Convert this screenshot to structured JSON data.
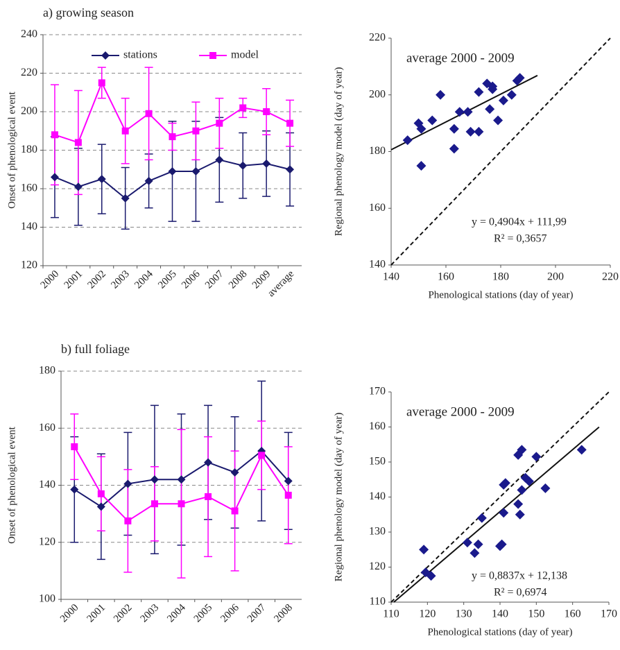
{
  "chart_data": [
    {
      "type": "line",
      "title": "a) growing season",
      "y_label": "Onset of phenological event",
      "categories": [
        "2000",
        "2001",
        "2002",
        "2003",
        "2004",
        "2005",
        "2006",
        "2007",
        "2008",
        "2009",
        "average"
      ],
      "series": [
        {
          "name": "stations",
          "color": "#1a1a6e",
          "marker": "diamond",
          "values": [
            166,
            161,
            165,
            155,
            164,
            169,
            169,
            175,
            172,
            173,
            170
          ],
          "errors": [
            21,
            20,
            18,
            16,
            14,
            26,
            26,
            22,
            17,
            17,
            19
          ]
        },
        {
          "name": "model",
          "color": "#ff00ff",
          "marker": "square",
          "values": [
            188,
            184,
            215,
            190,
            199,
            187,
            190,
            194,
            202,
            200,
            194
          ],
          "errors": [
            26,
            27,
            8,
            17,
            24,
            7,
            15,
            13,
            5,
            12,
            12
          ]
        }
      ],
      "ylim": [
        120,
        240
      ],
      "yticks": [
        120,
        140,
        160,
        180,
        200,
        220,
        240
      ],
      "grid": true,
      "legend": "top"
    },
    {
      "type": "scatter",
      "x_label": "Phenological stations (day of year)",
      "y_label": "Regional phenology model (day of year)",
      "annotations": [
        "average 2000 - 2009",
        "y = 0,4904x + 111,99",
        "R² = 0,3657"
      ],
      "x": [
        146,
        150,
        151,
        151,
        155,
        158,
        163,
        163,
        165,
        168,
        169,
        172,
        172,
        175,
        176,
        177,
        177,
        179,
        181,
        184,
        186,
        187
      ],
      "values": [
        184,
        190,
        188,
        175,
        191,
        200,
        188,
        181,
        194,
        194,
        187,
        187,
        201,
        204,
        195,
        202,
        203,
        191,
        198,
        200,
        205,
        206
      ],
      "color": "#1a1a8c",
      "trendline": {
        "slope": 0.4904,
        "intercept": 111.99
      },
      "identity_line": true,
      "xlim": [
        140,
        220
      ],
      "xticks": [
        140,
        160,
        180,
        200,
        220
      ],
      "ylim": [
        140,
        220
      ],
      "yticks": [
        140,
        160,
        180,
        200,
        220
      ]
    },
    {
      "type": "line",
      "title": "b) full foliage",
      "y_label": "Onset of phenological event",
      "categories": [
        "2000",
        "2001",
        "2002",
        "2003",
        "2004",
        "2005",
        "2006",
        "2007",
        "2008"
      ],
      "series": [
        {
          "name": "stations",
          "color": "#1a1a6e",
          "marker": "diamond",
          "values": [
            138.5,
            132.5,
            140.5,
            142,
            142,
            148,
            144.5,
            152,
            141.5
          ],
          "errors": [
            18.5,
            18.5,
            18,
            26,
            23,
            20,
            19.5,
            24.5,
            17
          ]
        },
        {
          "name": "model",
          "color": "#ff00ff",
          "marker": "square",
          "values": [
            153.5,
            137,
            127.5,
            133.5,
            133.5,
            136,
            131,
            150.5,
            136.5
          ],
          "errors": [
            11.5,
            13,
            18,
            13,
            26,
            21,
            21,
            12,
            17
          ]
        }
      ],
      "ylim": [
        100,
        180
      ],
      "yticks": [
        100,
        120,
        140,
        160,
        180
      ],
      "grid": true
    },
    {
      "type": "scatter",
      "x_label": "Phenological stations (day of year)",
      "y_label": "Regional phenology model (day of year)",
      "annotations": [
        "average 2000 - 2009",
        "y = 0,8837x + 12,138",
        "R² = 0,6974"
      ],
      "x": [
        119,
        119.5,
        121,
        131,
        133,
        134,
        135,
        140,
        140.5,
        141,
        141,
        141.5,
        145,
        145,
        145.5,
        146,
        146,
        147,
        148,
        150,
        152.5,
        162.5
      ],
      "values": [
        125,
        118.5,
        117.5,
        127,
        124,
        126.5,
        134,
        126,
        126.5,
        135.5,
        143.5,
        144,
        152,
        138,
        135,
        153.5,
        142,
        145.5,
        144.5,
        151.5,
        142.5,
        153.5
      ],
      "color": "#1a1a8c",
      "trendline": {
        "slope": 0.8837,
        "intercept": 12.138
      },
      "identity_line": true,
      "xlim": [
        110,
        170
      ],
      "xticks": [
        110,
        120,
        130,
        140,
        150,
        160,
        170
      ],
      "ylim": [
        110,
        170
      ],
      "yticks": [
        110,
        120,
        130,
        140,
        150,
        160,
        170
      ]
    }
  ]
}
